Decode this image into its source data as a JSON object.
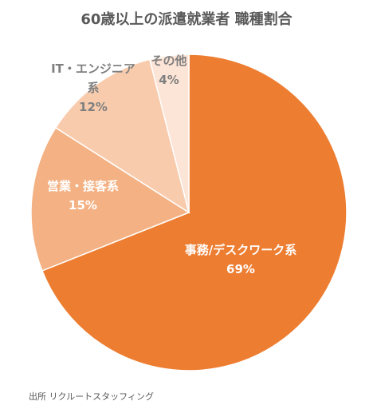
{
  "chart_data": {
    "type": "pie",
    "title": "60歳以上の派遣就業者 職種割合",
    "start_angle_deg": 0,
    "direction": "clockwise",
    "slices": [
      {
        "label_lines": [
          "事務/デスクワーク系"
        ],
        "value": 69,
        "value_label": "69%",
        "color": "#ED7D31",
        "label_color": "#FFFFFF"
      },
      {
        "label_lines": [
          "営業・接客系"
        ],
        "value": 15,
        "value_label": "15%",
        "color": "#F4B183",
        "label_color": "#FFFFFF"
      },
      {
        "label_lines": [
          "IT・エンジニア",
          "系"
        ],
        "value": 12,
        "value_label": "12%",
        "color": "#F8CBAD",
        "label_color": "#7F7F7F"
      },
      {
        "label_lines": [
          "その他"
        ],
        "value": 4,
        "value_label": "4%",
        "color": "#FCE4D6",
        "label_color": "#7F7F7F"
      }
    ],
    "legend": "none"
  },
  "source_note": "出所 リクルートスタッフィング"
}
